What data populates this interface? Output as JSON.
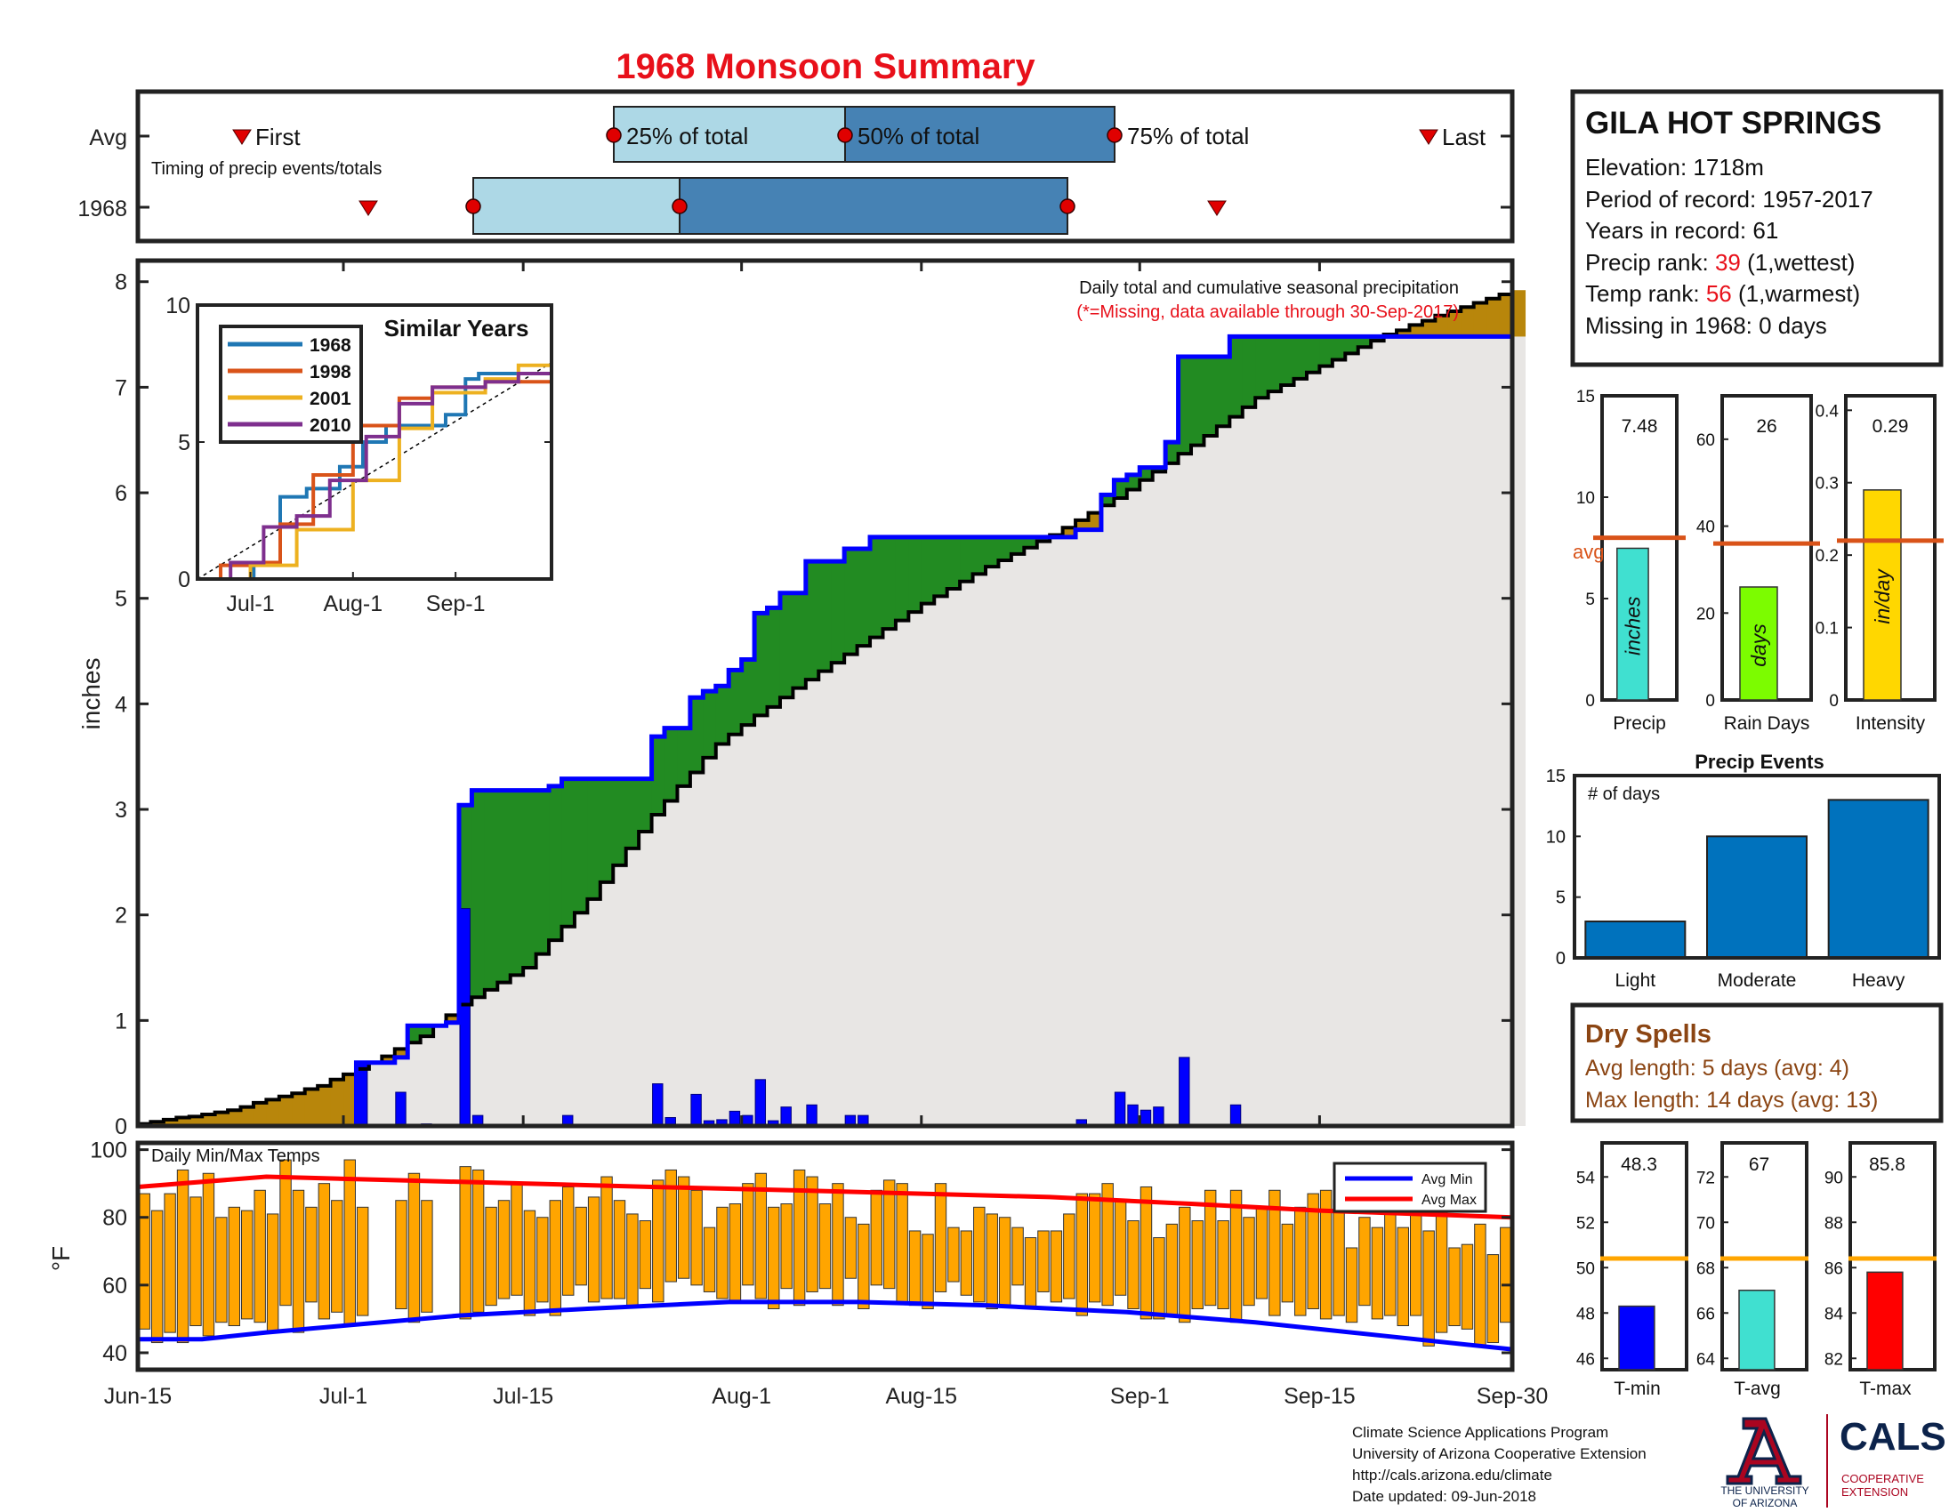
{
  "title": "1968 Monsoon Summary",
  "timing": {
    "row_labels": [
      "Avg",
      "1968"
    ],
    "caption": "Timing of precip events/totals",
    "first_label": "First",
    "last_label": "Last",
    "p25_label": "25% of total",
    "p50_label": "50% of total",
    "p75_label": "75% of total",
    "avg": {
      "first": "Jun-21",
      "p25": "Jul-20",
      "p50": "Aug-3",
      "p75": "Aug-19",
      "last": "Sep-22"
    },
    "y1968": {
      "first": "Jul-2",
      "p25": "Jul-11",
      "p50": "Jul-24",
      "p75": "Aug-17",
      "last": "Sep-6"
    }
  },
  "station": {
    "name": "GILA HOT SPRINGS",
    "elevation_label": "Elevation: 1718m",
    "period_label": "Period of record: 1957-2017",
    "years_label": "Years in record: 61",
    "precip_rank_prefix": "Precip rank: ",
    "precip_rank": "39",
    "precip_rank_suffix": " (1,wettest)",
    "temp_rank_prefix": "Temp rank: ",
    "temp_rank": "56",
    "temp_rank_suffix": " (1,warmest)",
    "missing_label": "Missing in 1968: 0 days"
  },
  "main_notes": {
    "line1": "Daily total and cumulative seasonal precipitation",
    "line2": "(*=Missing, data available through 30-Sep-2017)"
  },
  "inset": {
    "title": "Similar Years",
    "legend": [
      "1968",
      "1998",
      "2001",
      "2010"
    ],
    "colors": [
      "#1f77b4",
      "#d95319",
      "#edb120",
      "#7e2f8e"
    ]
  },
  "temps_label": "Daily Min/Max Temps",
  "temps_legend": [
    "Avg Min",
    "Avg Max"
  ],
  "precip_stats": {
    "precip": {
      "value": "7.48",
      "unit": "inches",
      "label": "Precip",
      "avg": 8.0,
      "ymax": 15,
      "ticks": [
        "0",
        "5",
        "10",
        "15"
      ],
      "color": "#40e0d0"
    },
    "rain_days": {
      "value": "26",
      "unit": "days",
      "label": "Rain Days",
      "avg": 36,
      "ymax": 70,
      "ticks": [
        "0",
        "20",
        "40",
        "60"
      ],
      "color": "#7cfc00"
    },
    "intensity": {
      "value": "0.29",
      "unit": "in/day",
      "label": "Intensity",
      "avg": 0.22,
      "ymax": 0.42,
      "ticks": [
        "0",
        "0.1",
        "0.2",
        "0.3",
        "0.4"
      ],
      "color": "#ffd700"
    },
    "avg_label": "avg"
  },
  "events": {
    "title": "Precip Events",
    "ylabel": "# of days",
    "categories": [
      "Light",
      "Moderate",
      "Heavy"
    ],
    "values": [
      3,
      10,
      13
    ],
    "ticks": [
      "0",
      "5",
      "10",
      "15"
    ]
  },
  "dry_spells": {
    "title": "Dry Spells",
    "avg_line": "Avg length: 5 days (avg: 4)",
    "max_line": "Max length: 14 days (avg: 13)"
  },
  "temp_stats": {
    "tmin": {
      "value": "48.3",
      "label": "T-min",
      "avg": 50.4,
      "ymin": 45.5,
      "ymax": 55.5,
      "ticks": [
        "46",
        "48",
        "50",
        "52",
        "54"
      ],
      "color": "#0000ff"
    },
    "tavg": {
      "value": "67",
      "label": "T-avg",
      "avg": 68.4,
      "ymin": 63.5,
      "ymax": 73.5,
      "ticks": [
        "64",
        "66",
        "68",
        "70",
        "72"
      ],
      "color": "#40e0d0"
    },
    "tmax": {
      "value": "85.8",
      "label": "T-max",
      "avg": 86.4,
      "ymin": 81.5,
      "ymax": 91.5,
      "ticks": [
        "82",
        "84",
        "86",
        "88",
        "90"
      ],
      "color": "#ff0000"
    }
  },
  "footer": {
    "line1": "Climate Science Applications Program",
    "line2": "University of Arizona Cooperative Extension",
    "line3": "http://cals.arizona.edu/climate",
    "line4": " Date updated: 09-Jun-2018"
  },
  "logos": {
    "ua_line1": "THE UNIVERSITY",
    "ua_line2": "OF ARIZONA",
    "cals": "CALS",
    "cals_sub1": "COOPERATIVE",
    "cals_sub2": "EXTENSION"
  },
  "chart_data": [
    {
      "type": "area",
      "title": "Daily total and cumulative seasonal precipitation",
      "ylabel": "inches",
      "xlabel": "",
      "x_ticks": [
        "Jun-15",
        "Jul-1",
        "Jul-15",
        "Aug-1",
        "Aug-15",
        "Sep-1",
        "Sep-15",
        "Sep-30"
      ],
      "y_ticks": [
        "0",
        "1",
        "2",
        "3",
        "4",
        "5",
        "6",
        "7",
        "8"
      ],
      "ylim": [
        0,
        8.2
      ],
      "x_range": [
        "Jun-15",
        "Sep-30"
      ],
      "series": [
        {
          "name": "1968 cumulative",
          "color": "#0000ff",
          "step_points": [
            [
              "Jun-15",
              0
            ],
            [
              "Jul-2",
              0.6
            ],
            [
              "Jul-5",
              0.65
            ],
            [
              "Jul-6",
              0.95
            ],
            [
              "Jul-9",
              0.98
            ],
            [
              "Jul-10",
              3.04
            ],
            [
              "Jul-11",
              3.18
            ],
            [
              "Jul-17",
              3.22
            ],
            [
              "Jul-18",
              3.29
            ],
            [
              "Jul-25",
              3.69
            ],
            [
              "Jul-26",
              3.77
            ],
            [
              "Jul-28",
              4.06
            ],
            [
              "Jul-29",
              4.12
            ],
            [
              "Jul-30",
              4.17
            ],
            [
              "Jul-31",
              4.32
            ],
            [
              "Aug-1",
              4.42
            ],
            [
              "Aug-2",
              4.86
            ],
            [
              "Aug-3",
              4.91
            ],
            [
              "Aug-4",
              5.05
            ],
            [
              "Aug-6",
              5.35
            ],
            [
              "Aug-9",
              5.47
            ],
            [
              "Aug-11",
              5.58
            ],
            [
              "Aug-27",
              5.65
            ],
            [
              "Aug-29",
              5.98
            ],
            [
              "Aug-30",
              6.12
            ],
            [
              "Aug-31",
              6.17
            ],
            [
              "Sep-1",
              6.24
            ],
            [
              "Sep-3",
              6.48
            ],
            [
              "Sep-4",
              7.29
            ],
            [
              "Sep-8",
              7.48
            ],
            [
              "Sep-30",
              7.48
            ]
          ]
        },
        {
          "name": "Avg cumulative",
          "color": "#000000",
          "points": [
            [
              "Jun-15",
              0.02
            ],
            [
              "Jun-22",
              0.15
            ],
            [
              "Jun-29",
              0.38
            ],
            [
              "Jul-3",
              0.6
            ],
            [
              "Jul-7",
              0.85
            ],
            [
              "Jul-10",
              1.15
            ],
            [
              "Jul-15",
              1.5
            ],
            [
              "Jul-20",
              2.15
            ],
            [
              "Jul-25",
              2.95
            ],
            [
              "Jul-30",
              3.62
            ],
            [
              "Aug-5",
              4.15
            ],
            [
              "Aug-10",
              4.55
            ],
            [
              "Aug-15",
              4.95
            ],
            [
              "Aug-20",
              5.3
            ],
            [
              "Aug-25",
              5.6
            ],
            [
              "Aug-30",
              5.95
            ],
            [
              "Sep-5",
              6.45
            ],
            [
              "Sep-10",
              6.9
            ],
            [
              "Sep-15",
              7.2
            ],
            [
              "Sep-20",
              7.5
            ],
            [
              "Sep-25",
              7.72
            ],
            [
              "Sep-30",
              7.92
            ]
          ]
        }
      ],
      "daily_bars": [
        [
          "Jul-2",
          0.6
        ],
        [
          "Jul-5",
          0.32
        ],
        [
          "Jul-7",
          0.02
        ],
        [
          "Jul-10",
          2.06
        ],
        [
          "Jul-11",
          0.1
        ],
        [
          "Jul-18",
          0.1
        ],
        [
          "Jul-25",
          0.4
        ],
        [
          "Jul-26",
          0.08
        ],
        [
          "Jul-28",
          0.3
        ],
        [
          "Jul-29",
          0.05
        ],
        [
          "Jul-30",
          0.06
        ],
        [
          "Jul-31",
          0.14
        ],
        [
          "Aug-1",
          0.1
        ],
        [
          "Aug-2",
          0.44
        ],
        [
          "Aug-3",
          0.05
        ],
        [
          "Aug-4",
          0.18
        ],
        [
          "Aug-6",
          0.2
        ],
        [
          "Aug-9",
          0.1
        ],
        [
          "Aug-10",
          0.1
        ],
        [
          "Aug-27",
          0.06
        ],
        [
          "Aug-30",
          0.32
        ],
        [
          "Aug-31",
          0.2
        ],
        [
          "Sep-1",
          0.15
        ],
        [
          "Sep-2",
          0.18
        ],
        [
          "Sep-4",
          0.65
        ],
        [
          "Sep-8",
          0.2
        ]
      ]
    },
    {
      "type": "bar",
      "title": "Similar Years",
      "x_ticks": [
        "Jul-1",
        "Aug-1",
        "Sep-1"
      ],
      "y_ticks": [
        "0",
        "5",
        "10"
      ],
      "ylim": [
        0,
        10
      ],
      "series": [
        {
          "name": "1968",
          "points": [
            [
              "Jun-15",
              0
            ],
            [
              "Jul-2",
              0.6
            ],
            [
              "Jul-10",
              3.0
            ],
            [
              "Jul-18",
              3.3
            ],
            [
              "Jul-28",
              4.1
            ],
            [
              "Aug-4",
              5.0
            ],
            [
              "Aug-11",
              5.6
            ],
            [
              "Aug-29",
              6.0
            ],
            [
              "Sep-4",
              7.3
            ],
            [
              "Sep-8",
              7.5
            ],
            [
              "Sep-30",
              7.5
            ]
          ]
        },
        {
          "name": "1998",
          "points": [
            [
              "Jun-15",
              0
            ],
            [
              "Jun-22",
              0.5
            ],
            [
              "Jul-1",
              0.6
            ],
            [
              "Jul-10",
              2.0
            ],
            [
              "Jul-20",
              3.8
            ],
            [
              "Aug-1",
              5.6
            ],
            [
              "Aug-15",
              6.6
            ],
            [
              "Aug-25",
              7.0
            ],
            [
              "Sep-10",
              7.2
            ],
            [
              "Sep-30",
              7.2
            ]
          ]
        },
        {
          "name": "2001",
          "points": [
            [
              "Jun-15",
              0
            ],
            [
              "Jul-1",
              0.5
            ],
            [
              "Jul-15",
              1.8
            ],
            [
              "Aug-1",
              3.6
            ],
            [
              "Aug-15",
              5.5
            ],
            [
              "Aug-25",
              6.8
            ],
            [
              "Sep-10",
              7.3
            ],
            [
              "Sep-20",
              7.8
            ],
            [
              "Sep-30",
              7.9
            ]
          ]
        },
        {
          "name": "2010",
          "points": [
            [
              "Jun-15",
              0
            ],
            [
              "Jun-25",
              0.6
            ],
            [
              "Jul-5",
              1.9
            ],
            [
              "Jul-15",
              2.3
            ],
            [
              "Jul-25",
              3.6
            ],
            [
              "Aug-5",
              5.2
            ],
            [
              "Aug-15",
              6.4
            ],
            [
              "Aug-25",
              7.0
            ],
            [
              "Sep-10",
              7.2
            ],
            [
              "Sep-20",
              7.5
            ],
            [
              "Sep-30",
              7.5
            ]
          ]
        }
      ]
    },
    {
      "type": "bar",
      "title": "Daily Min/Max Temps",
      "ylabel": "°F",
      "y_ticks": [
        "40",
        "60",
        "80",
        "100"
      ],
      "ylim": [
        35,
        102
      ],
      "avg_min": [
        [
          "Jun-15",
          44
        ],
        [
          "Jun-20",
          44
        ],
        [
          "Jun-25",
          46
        ],
        [
          "Jul-1",
          48
        ],
        [
          "Jul-10",
          51
        ],
        [
          "Jul-20",
          53
        ],
        [
          "Jul-31",
          55
        ],
        [
          "Aug-10",
          55
        ],
        [
          "Aug-20",
          54
        ],
        [
          "Aug-31",
          52
        ],
        [
          "Sep-10",
          49
        ],
        [
          "Sep-20",
          45
        ],
        [
          "Sep-30",
          41
        ]
      ],
      "avg_max": [
        [
          "Jun-15",
          89
        ],
        [
          "Jun-25",
          92
        ],
        [
          "Jul-5",
          91
        ],
        [
          "Jul-15",
          90
        ],
        [
          "Jul-25",
          89
        ],
        [
          "Aug-5",
          88
        ],
        [
          "Aug-15",
          87
        ],
        [
          "Aug-25",
          86
        ],
        [
          "Sep-5",
          84
        ],
        [
          "Sep-15",
          82
        ],
        [
          "Sep-30",
          80
        ]
      ]
    }
  ]
}
